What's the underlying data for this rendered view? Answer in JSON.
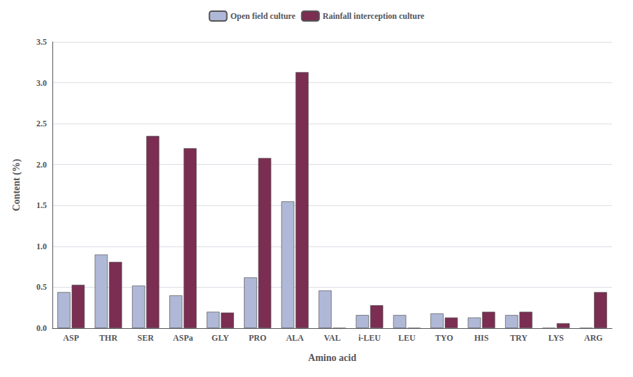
{
  "chart_data": {
    "type": "bar",
    "categories": [
      "ASP",
      "THR",
      "SER",
      "ASPa",
      "GLY",
      "PRO",
      "ALA",
      "VAL",
      "i-LEU",
      "LEU",
      "TYO",
      "HIS",
      "TRY",
      "LYS",
      "ARG"
    ],
    "series": [
      {
        "name": "Open field culture",
        "color": "#b0b8d8",
        "values": [
          0.44,
          0.9,
          0.52,
          0.4,
          0.2,
          0.62,
          1.55,
          0.46,
          0.16,
          0.16,
          0.18,
          0.13,
          0.16,
          0.0,
          0.0
        ]
      },
      {
        "name": "Rainfall interception culture",
        "color": "#7b2d52",
        "values": [
          0.53,
          0.81,
          2.35,
          2.2,
          0.19,
          2.08,
          3.13,
          0.0,
          0.28,
          0.0,
          0.13,
          0.2,
          0.2,
          0.06,
          0.44
        ]
      }
    ],
    "xlabel": "Amino acid",
    "ylabel": "Content (%)",
    "ylim": [
      0,
      3.5
    ],
    "yticks": [
      {
        "value": 0.0,
        "label": "0.0"
      },
      0.5,
      {
        "value": 1.0,
        "label": "1.0"
      },
      1.5,
      {
        "value": 2.0,
        "label": "2.0"
      },
      2.5,
      {
        "value": 3.0,
        "label": "3.0"
      },
      3.5
    ],
    "grid": true,
    "legend": "top"
  }
}
